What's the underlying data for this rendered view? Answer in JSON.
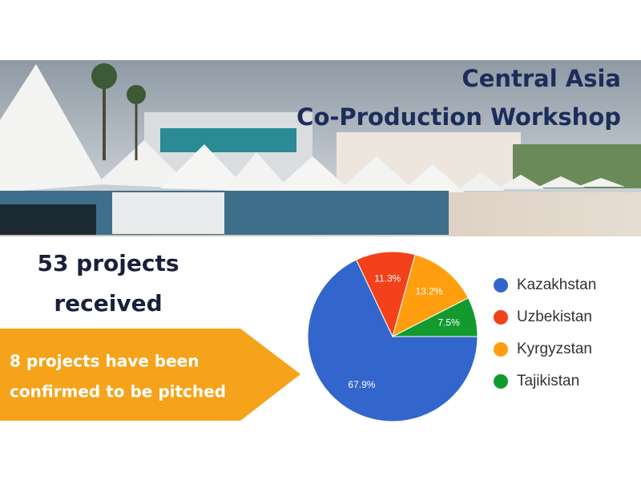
{
  "header": {
    "title_line1": "Central Asia",
    "title_line2": "Co-Production Workshop"
  },
  "stats": {
    "received_line1": "53 projects",
    "received_line2": "received",
    "banner_line1": "8 projects have been",
    "banner_line2": "confirmed to be pitched"
  },
  "chart_data": {
    "type": "pie",
    "categories": [
      "Kazakhstan",
      "Uzbekistan",
      "Kyrgyzstan",
      "Tajikistan"
    ],
    "values": [
      67.9,
      11.3,
      13.2,
      7.5
    ],
    "value_labels": [
      "67.9%",
      "11.3%",
      "13.2%",
      "7.5%"
    ],
    "colors": [
      "#3366cc",
      "#f2411b",
      "#ff9f0f",
      "#129a2f"
    ],
    "legend": "right"
  }
}
